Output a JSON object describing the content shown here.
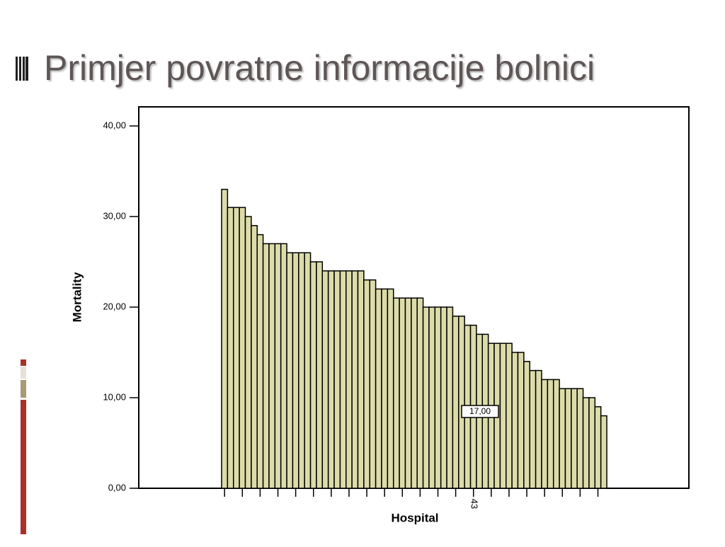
{
  "slide_title": "Primjer povratne informacije bolnici",
  "chart_data": {
    "type": "bar",
    "x_label": "Hospital",
    "y_label": "Mortality",
    "annotation": "17,00",
    "categories": [
      null,
      null,
      null,
      null,
      null,
      null,
      null,
      null,
      null,
      null,
      null,
      null,
      null,
      null,
      null,
      null,
      null,
      null,
      null,
      null,
      null,
      null,
      null,
      null,
      null,
      null,
      null,
      null,
      null,
      null,
      null,
      null,
      null,
      null,
      null,
      null,
      null,
      null,
      null,
      null,
      null,
      null,
      "43",
      null,
      null,
      null,
      null,
      null,
      null,
      null,
      null,
      null,
      null,
      null,
      null,
      null,
      null,
      null,
      null,
      null,
      null,
      null,
      null,
      null,
      null
    ],
    "values": [
      33,
      31,
      31,
      31,
      30,
      29,
      28,
      27,
      27,
      27,
      27,
      26,
      26,
      26,
      26,
      25,
      25,
      24,
      24,
      24,
      24,
      24,
      24,
      24,
      23,
      23,
      22,
      22,
      22,
      21,
      21,
      21,
      21,
      21,
      20,
      20,
      20,
      20,
      20,
      19,
      19,
      18,
      18,
      17,
      17,
      16,
      16,
      16,
      16,
      15,
      15,
      14,
      13,
      13,
      12,
      12,
      12,
      11,
      11,
      11,
      11,
      10,
      10,
      9,
      8
    ],
    "color": "#dcdcaa",
    "ylim": [
      0,
      40
    ],
    "yticks": [
      {
        "value": 0,
        "label": "0,00"
      },
      {
        "value": 10,
        "label": "10,00"
      },
      {
        "value": 20,
        "label": "20,00"
      },
      {
        "value": 30,
        "label": "30,00"
      },
      {
        "value": 40,
        "label": "40,00"
      }
    ]
  }
}
